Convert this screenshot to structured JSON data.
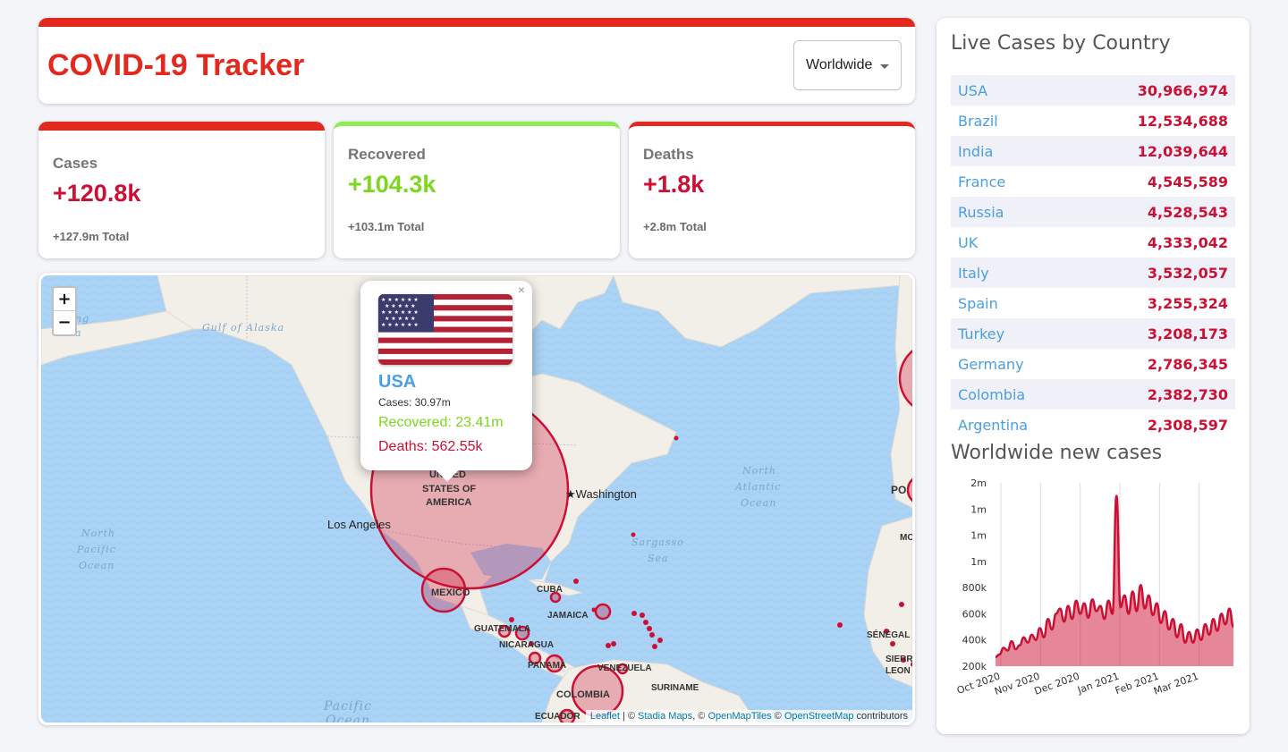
{
  "header": {
    "title": "COVID-19 Tracker",
    "dropdown_value": "Worldwide"
  },
  "stats": {
    "cases": {
      "label": "Cases",
      "value": "+120.8k",
      "total": "+127.9m Total"
    },
    "recovered": {
      "label": "Recovered",
      "value": "+104.3k",
      "total": "+103.1m Total"
    },
    "deaths": {
      "label": "Deaths",
      "value": "+1.8k",
      "total": "+2.8m Total"
    }
  },
  "map": {
    "zoom_in": "+",
    "zoom_out": "−",
    "labels": {
      "gulf_alaska": "Gulf of Alaska",
      "usa_1": "UNITED",
      "usa_2": "STATES OF",
      "usa_3": "AMERICA",
      "washington": "★Washington",
      "los_angeles": "Los Angeles",
      "north_pacific_1": "North",
      "north_pacific_2": "Pacific",
      "north_pacific_3": "Ocean",
      "north_atlantic_1": "North",
      "north_atlantic_2": "Atlantic",
      "north_atlantic_3": "Ocean",
      "sargasso_1": "Sargasso",
      "sargasso_2": "Sea",
      "mexico": "MEXICO",
      "cuba": "CUBA",
      "jamaica": "JAMAICA",
      "guatemala": "GUATEMALA",
      "nicaragua": "NICARAGUA",
      "panama": "PANAMA",
      "venezuela": "VENEZUELA",
      "colombia": "COLOMBIA",
      "suriname": "SURINAME",
      "ecuador": "ECUADOR",
      "senegal": "SÉNÉGAL",
      "sierra_1": "SIERR",
      "sierra_2": "LEON",
      "pacific_1": "Pacific",
      "pacific_2": "Ocean",
      "po": "PO",
      "mo": "MO",
      "bering_1": "ng",
      "bering_2": "Sea"
    },
    "attribution": {
      "leaflet": "Leaflet",
      "sep1": " | © ",
      "stadia": "Stadia Maps",
      "sep2": ", © ",
      "openmaptiles": "OpenMapTiles",
      "sep3": " © ",
      "osm": "OpenStreetMap",
      "suffix": " contributors"
    },
    "popup": {
      "close": "×",
      "country": "USA",
      "cases": "Cases: 30.97m",
      "recovered": "Recovered: 23.41m",
      "deaths": "Deaths: 562.55k"
    },
    "colors": {
      "circle": "#cc1034",
      "water": "#aad3f5",
      "land": "#f2efe9"
    }
  },
  "live_cases": {
    "title": "Live Cases by Country",
    "rows": [
      {
        "country": "USA",
        "cases": "30,966,974"
      },
      {
        "country": "Brazil",
        "cases": "12,534,688"
      },
      {
        "country": "India",
        "cases": "12,039,644"
      },
      {
        "country": "France",
        "cases": "4,545,589"
      },
      {
        "country": "Russia",
        "cases": "4,528,543"
      },
      {
        "country": "UK",
        "cases": "4,333,042"
      },
      {
        "country": "Italy",
        "cases": "3,532,057"
      },
      {
        "country": "Spain",
        "cases": "3,255,324"
      },
      {
        "country": "Turkey",
        "cases": "3,208,173"
      },
      {
        "country": "Germany",
        "cases": "2,786,345"
      },
      {
        "country": "Colombia",
        "cases": "2,382,730"
      },
      {
        "country": "Argentina",
        "cases": "2,308,597"
      }
    ]
  },
  "chart_data": {
    "type": "area",
    "title": "Worldwide new cases",
    "ytick_labels": [
      "2m",
      "1m",
      "1m",
      "1m",
      "800k",
      "600k",
      "400k",
      "200k"
    ],
    "xtick_labels": [
      "Oct 2020",
      "Nov 2020",
      "Dec 2020",
      "Jan 2021",
      "Feb 2021",
      "Mar 2021"
    ],
    "ylim": [
      200000,
      1600000
    ],
    "x_start": "2020-10-01",
    "values": [
      270000,
      290000,
      340000,
      320000,
      390000,
      330000,
      360000,
      420000,
      380000,
      440000,
      400000,
      490000,
      420000,
      560000,
      480000,
      600000,
      640000,
      540000,
      660000,
      560000,
      700000,
      600000,
      680000,
      570000,
      710000,
      620000,
      660000,
      560000,
      700000,
      600000,
      1500000,
      650000,
      740000,
      600000,
      770000,
      620000,
      820000,
      640000,
      740000,
      590000,
      680000,
      530000,
      620000,
      480000,
      560000,
      420000,
      520000,
      380000,
      460000,
      380000,
      480000,
      400000,
      520000,
      440000,
      560000,
      470000,
      600000,
      520000,
      640000,
      500000
    ],
    "series_color": "#cc1034",
    "fill_color": "rgba(204,16,52,0.5)"
  }
}
